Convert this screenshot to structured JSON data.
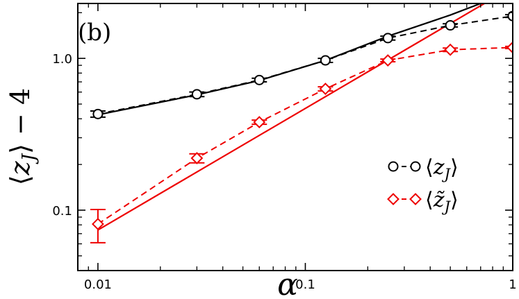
{
  "chart_data": {
    "type": "line",
    "panel_label": "(b)",
    "xlabel": "α",
    "ylabel": "⟨z_J⟩ − 4",
    "xscale": "log",
    "yscale": "log",
    "xlim": [
      0.008,
      1.0
    ],
    "ylim": [
      0.04,
      2.3
    ],
    "x_ticks": [
      0.01,
      0.1,
      1
    ],
    "x_tick_labels": [
      "0.01",
      "0.1",
      "1"
    ],
    "y_ticks": [
      0.1,
      1.0
    ],
    "y_tick_labels": [
      "0.1",
      "1.0"
    ],
    "grid": false,
    "legend_position": "right",
    "series": [
      {
        "name": "⟨z_J⟩",
        "color": "#000000",
        "marker": "circle",
        "x": [
          0.01,
          0.03,
          0.06,
          0.125,
          0.25,
          0.5,
          1.0
        ],
        "y": [
          0.43,
          0.58,
          0.72,
          0.97,
          1.36,
          1.65,
          1.9
        ],
        "yerr": [
          0.02,
          0.02,
          0.02,
          0.03,
          0.04,
          0.04,
          0.04
        ]
      },
      {
        "name": "⟨z̃_J⟩",
        "color": "#ee0000",
        "marker": "diamond",
        "x": [
          0.01,
          0.03,
          0.06,
          0.125,
          0.25,
          0.5,
          1.0
        ],
        "y": [
          0.081,
          0.22,
          0.38,
          0.63,
          0.97,
          1.14,
          1.18
        ],
        "yerr": [
          0.02,
          0.015,
          0.012,
          0.02,
          0.02,
          0.03,
          0.02
        ]
      }
    ],
    "fit_lines": [
      {
        "color": "#000000",
        "x": [
          0.01,
          0.03,
          0.06,
          0.125,
          0.25,
          0.5,
          0.7
        ],
        "y": [
          0.425,
          0.575,
          0.715,
          0.97,
          1.4,
          1.93,
          2.3
        ]
      },
      {
        "color": "#ee0000",
        "x": [
          0.01,
          0.73
        ],
        "y": [
          0.074,
          2.3
        ]
      }
    ]
  }
}
